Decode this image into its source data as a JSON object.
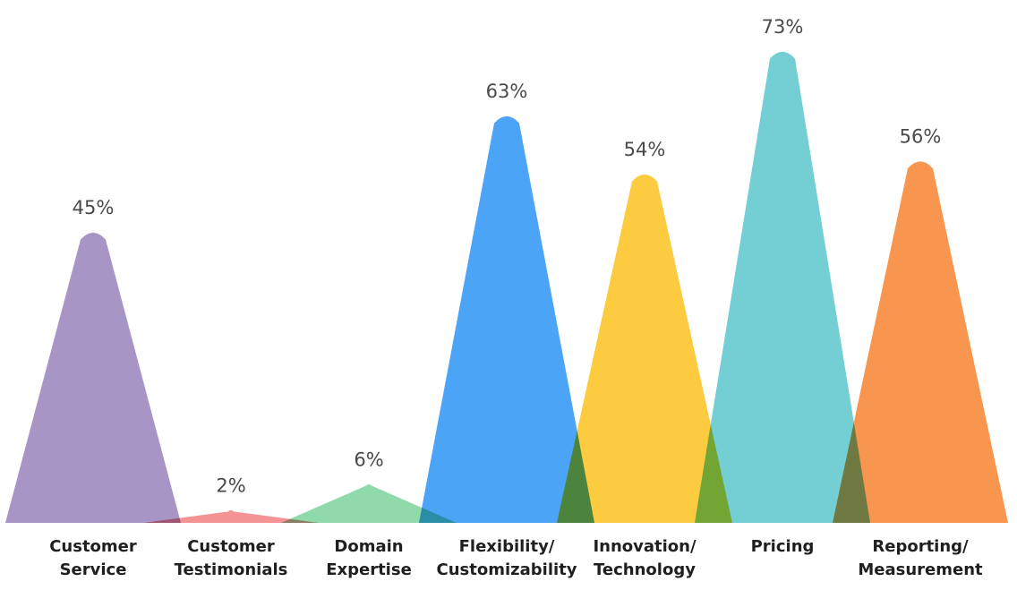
{
  "chart_data": {
    "type": "area",
    "style": "peak-triangles",
    "ylim": [
      0,
      73
    ],
    "categories": [
      [
        "Customer",
        "Service"
      ],
      [
        "Customer",
        "Testimonials"
      ],
      [
        "Domain",
        "Expertise"
      ],
      [
        "Flexibility/",
        "Customizability"
      ],
      [
        "Innovation/",
        "Technology"
      ],
      [
        "Pricing"
      ],
      [
        "Reporting/",
        "Measurement"
      ]
    ],
    "values": [
      45,
      2,
      6,
      63,
      54,
      73,
      56
    ],
    "value_labels": [
      "45%",
      "2%",
      "6%",
      "63%",
      "54%",
      "73%",
      "56%"
    ],
    "colors": [
      "#a08cc0",
      "#f28a8a",
      "#87d6a4",
      "#3d9cf5",
      "#fdc72f",
      "#68cbd1",
      "#f78c40"
    ]
  }
}
